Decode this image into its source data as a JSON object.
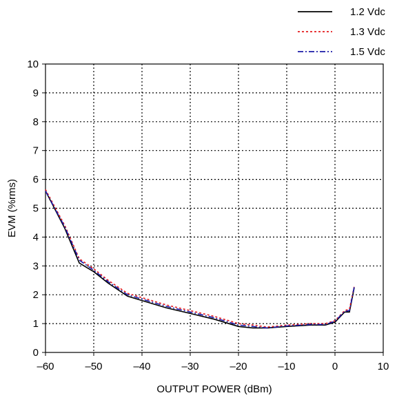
{
  "chart_data": {
    "type": "line",
    "title": "",
    "xlabel": "OUTPUT POWER (dBm)",
    "ylabel": "EVM (%rms)",
    "xlim": [
      -60,
      10
    ],
    "ylim": [
      0,
      10
    ],
    "x_ticks": [
      "–60",
      "–50",
      "–40",
      "–30",
      "–20",
      "–10",
      "0",
      "10"
    ],
    "y_ticks": [
      "0",
      "1",
      "2",
      "3",
      "4",
      "5",
      "6",
      "7",
      "8",
      "9",
      "10"
    ],
    "grid": true,
    "legend_position": "top-right",
    "series": [
      {
        "name": "1.2 Vdc",
        "color": "#000000",
        "style": "solid",
        "points": [
          [
            -60,
            5.6
          ],
          [
            -56,
            4.3
          ],
          [
            -53,
            3.1
          ],
          [
            -50,
            2.8
          ],
          [
            -47,
            2.4
          ],
          [
            -43,
            1.95
          ],
          [
            -40,
            1.8
          ],
          [
            -35,
            1.55
          ],
          [
            -30,
            1.35
          ],
          [
            -25,
            1.15
          ],
          [
            -20,
            0.9
          ],
          [
            -17,
            0.85
          ],
          [
            -14,
            0.85
          ],
          [
            -10,
            0.9
          ],
          [
            -5,
            0.95
          ],
          [
            -2,
            0.95
          ],
          [
            0,
            1.05
          ],
          [
            2,
            1.4
          ],
          [
            3,
            1.4
          ],
          [
            4,
            2.25
          ]
        ]
      },
      {
        "name": "1.3 Vdc",
        "color": "#e41a1c",
        "style": "dotted",
        "points": [
          [
            -60,
            5.65
          ],
          [
            -56,
            4.4
          ],
          [
            -53,
            3.25
          ],
          [
            -50,
            2.9
          ],
          [
            -47,
            2.5
          ],
          [
            -43,
            2.05
          ],
          [
            -40,
            1.9
          ],
          [
            -35,
            1.65
          ],
          [
            -30,
            1.45
          ],
          [
            -25,
            1.25
          ],
          [
            -20,
            1.0
          ],
          [
            -17,
            0.95
          ],
          [
            -14,
            0.88
          ],
          [
            -10,
            0.95
          ],
          [
            -5,
            1.0
          ],
          [
            -2,
            1.0
          ],
          [
            0,
            1.1
          ],
          [
            2,
            1.45
          ],
          [
            3,
            1.5
          ],
          [
            4,
            2.3
          ]
        ]
      },
      {
        "name": "1.5 Vdc",
        "color": "#1a1aa8",
        "style": "dashdot",
        "points": [
          [
            -60,
            5.6
          ],
          [
            -56,
            4.35
          ],
          [
            -53,
            3.2
          ],
          [
            -50,
            2.85
          ],
          [
            -47,
            2.45
          ],
          [
            -43,
            2.0
          ],
          [
            -40,
            1.85
          ],
          [
            -35,
            1.6
          ],
          [
            -30,
            1.4
          ],
          [
            -25,
            1.2
          ],
          [
            -20,
            0.95
          ],
          [
            -17,
            0.9
          ],
          [
            -14,
            0.85
          ],
          [
            -10,
            0.92
          ],
          [
            -5,
            0.97
          ],
          [
            -2,
            0.97
          ],
          [
            0,
            1.08
          ],
          [
            2,
            1.42
          ],
          [
            3,
            1.45
          ],
          [
            4,
            2.28
          ]
        ]
      }
    ]
  }
}
